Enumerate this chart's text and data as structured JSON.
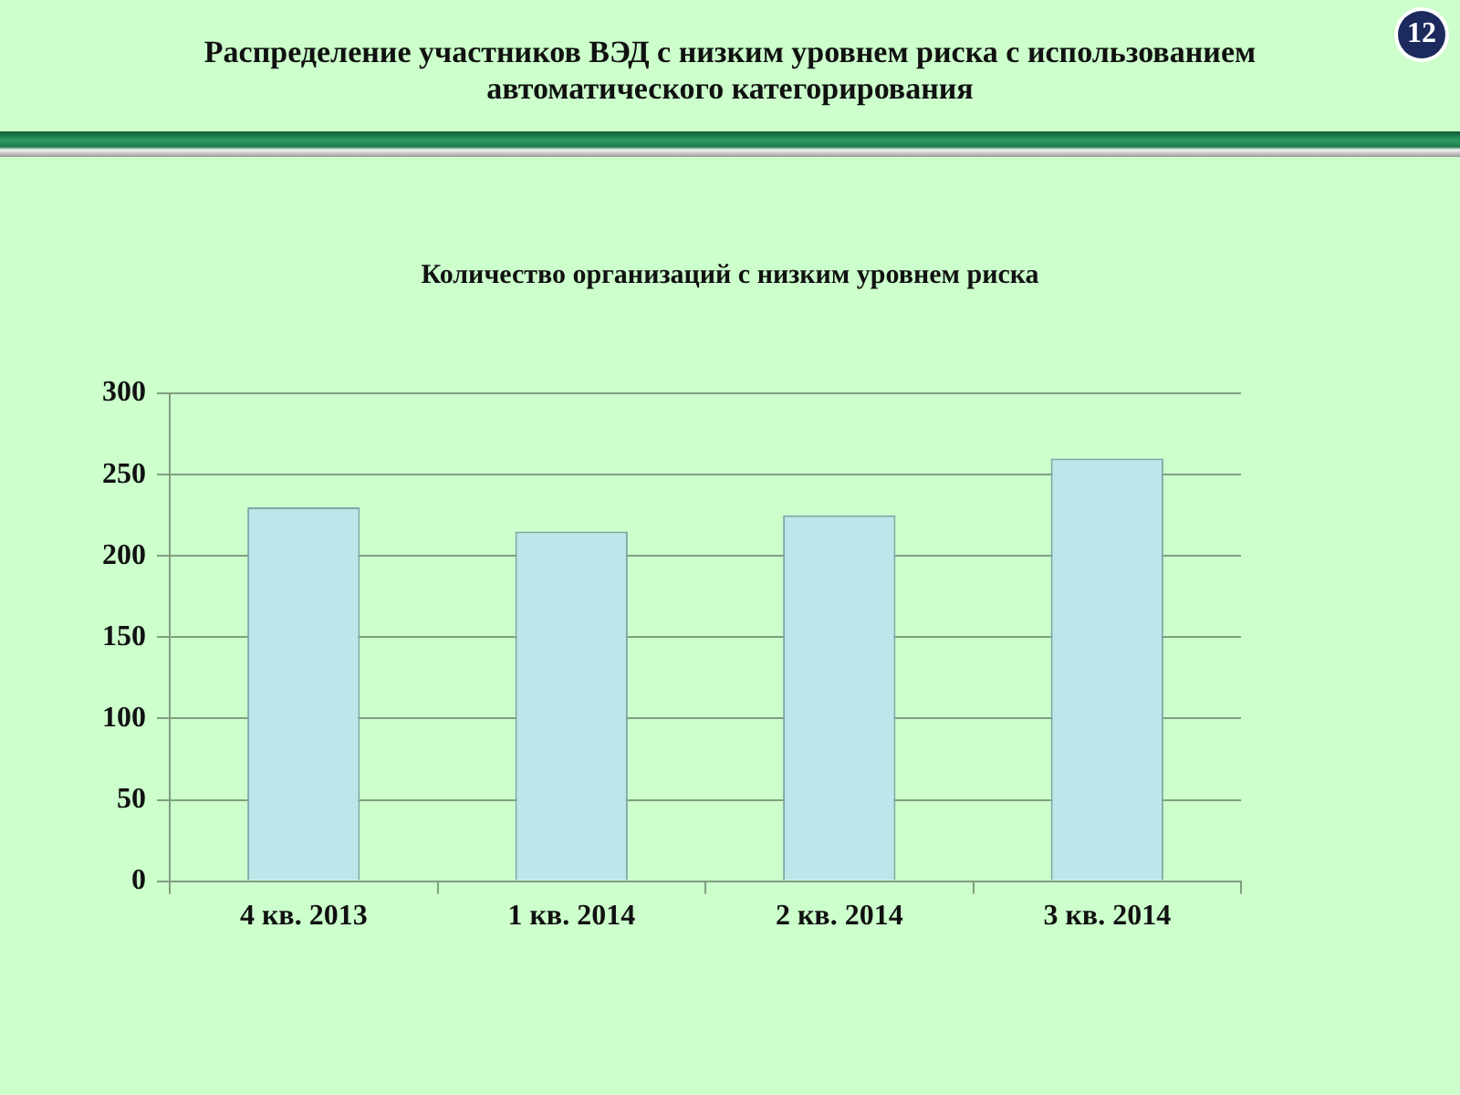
{
  "chart_data": {
    "type": "bar",
    "title": "Распределение участников ВЭД с низким уровнем риска с использованием автоматического категорирования",
    "subtitle": "Количество организаций с низким уровнем риска",
    "categories": [
      "4 кв. 2013",
      "1 кв. 2014",
      "2 кв. 2014",
      "3 кв. 2014"
    ],
    "values": [
      230,
      215,
      225,
      260
    ],
    "color": "#bde6ea",
    "ylim": [
      0,
      300
    ],
    "yticks": [
      0,
      50,
      100,
      150,
      200,
      250,
      300
    ],
    "grid": "y",
    "annotations": [
      "12"
    ]
  }
}
